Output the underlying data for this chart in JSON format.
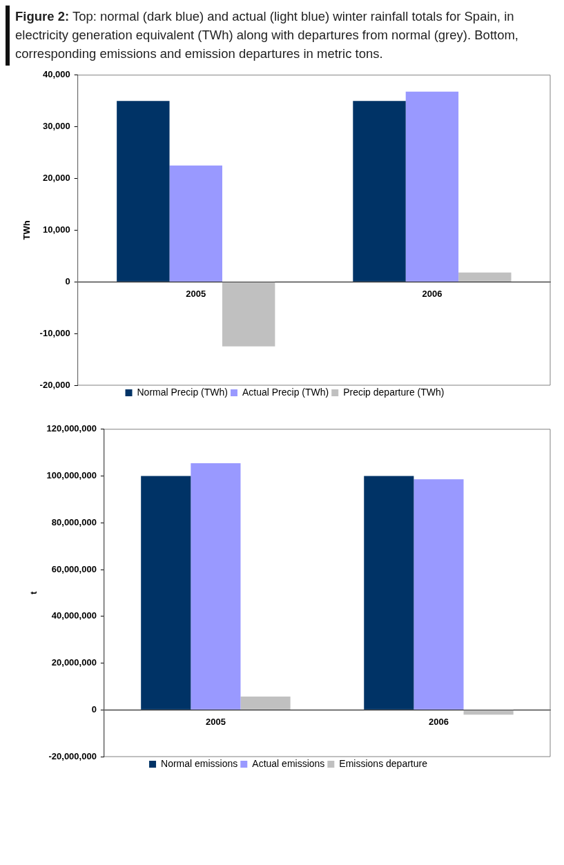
{
  "chart_data": [
    {
      "type": "bar",
      "title": "Figure 2: Top: normal (dark blue) and actual (light blue) winter rainfall totals for Spain, in electricity generation equivalent (TWh) along with departures from normal (grey). Bottom, corresponding emissions and emission departures in metric tons.",
      "ylabel": "TWh",
      "categories": [
        "2005",
        "2006"
      ],
      "series": [
        {
          "name": "Normal Precip (TWh)",
          "color": "#003366",
          "values": [
            35000,
            35000
          ]
        },
        {
          "name": "Actual Precip (TWh)",
          "color": "#9999ff",
          "values": [
            22500,
            36800
          ]
        },
        {
          "name": "Precip departure (TWh)",
          "color": "#c0c0c0",
          "values": [
            -12500,
            1800
          ]
        }
      ],
      "ylim": [
        -20000,
        40000
      ],
      "yticks": [
        {
          "value": -20000,
          "label": "-20,000"
        },
        {
          "value": -10000,
          "label": "-10,000"
        },
        0,
        {
          "value": 10000,
          "label": "10,000"
        },
        {
          "value": 20000,
          "label": "20,000"
        },
        {
          "value": 30000,
          "label": "30,000"
        },
        {
          "value": 40000,
          "label": "40,000"
        }
      ],
      "grid": false,
      "legend": "bottom"
    },
    {
      "type": "bar",
      "ylabel": "t",
      "categories": [
        "2005",
        "2006"
      ],
      "series": [
        {
          "name": "Normal emissions",
          "color": "#003366",
          "values": [
            100000000,
            100000000
          ]
        },
        {
          "name": "Actual emissions",
          "color": "#9999ff",
          "values": [
            105500000,
            98600000
          ]
        },
        {
          "name": "Emissions departure",
          "color": "#c0c0c0",
          "values": [
            5700000,
            -2100000
          ]
        }
      ],
      "ylim": [
        -20000000,
        120000000
      ],
      "yticks": [
        {
          "value": -20000000,
          "label": "-20,000,000"
        },
        0,
        {
          "value": 20000000,
          "label": "20,000,000"
        },
        {
          "value": 40000000,
          "label": "40,000,000"
        },
        {
          "value": 60000000,
          "label": "60,000,000"
        },
        {
          "value": 80000000,
          "label": "80,000,000"
        },
        {
          "value": 100000000,
          "label": "100,000,000"
        },
        {
          "value": 120000000,
          "label": "120,000,000"
        }
      ],
      "grid": false,
      "legend": "bottom"
    }
  ]
}
